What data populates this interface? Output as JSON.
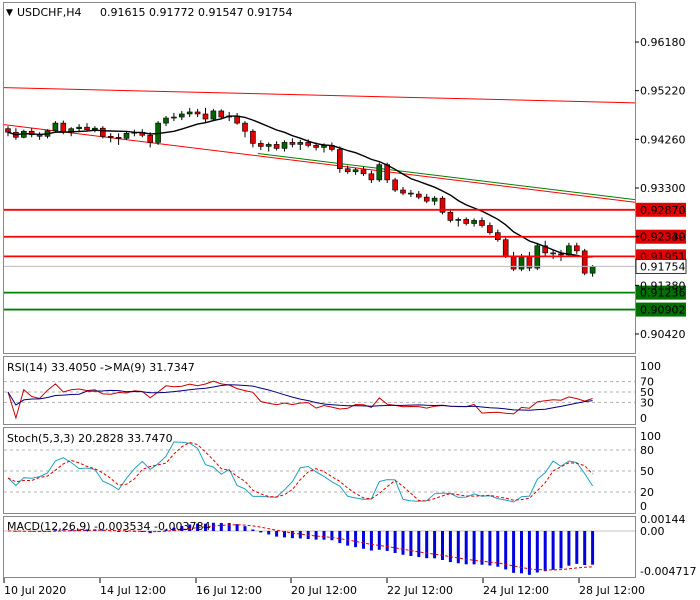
{
  "header": {
    "symbol": "USDCHF,H4",
    "ohlc": "0.91615 0.91772 0.91547 0.91754"
  },
  "colors": {
    "bull": "#006400",
    "bear": "#e00000",
    "ma": "#000000",
    "red_line": "#ff0000",
    "green_line": "#008000",
    "resistance_tag": "#e00000",
    "support_tag": "#007000",
    "grid": "#b0b0b0",
    "rsi_line": "#cc0000",
    "rsi_ma": "#000080",
    "stoch_main": "#20a0c0",
    "stoch_signal": "#e00000",
    "macd_hist": "#0000e0",
    "macd_signal": "#e00000"
  },
  "main_axis": {
    "ticks": [
      "0.96180",
      "0.95220",
      "0.94260",
      "0.93300",
      "0.92340",
      "0.91380",
      "0.90420"
    ]
  },
  "levels": {
    "resistance": [
      "0.92870",
      "0.92339",
      "0.91951"
    ],
    "support": [
      "0.91236",
      "0.90902"
    ],
    "current": "0.91754"
  },
  "rsi": {
    "label": "RSI(14) 33.4050 ->MA(9) 31.7347",
    "ticks": [
      "100",
      "70",
      "50",
      "30",
      "0"
    ]
  },
  "stoch": {
    "label": "Stoch(5,3,3) 20.2828 33.7470",
    "ticks": [
      "100",
      "80",
      "50",
      "20",
      "0"
    ]
  },
  "macd": {
    "label": "MACD(12,26,9) -0.003534 -0.003784",
    "ticks": [
      "0.00144",
      "0.00",
      "-0.004717"
    ]
  },
  "time_axis": [
    "10 Jul 2020",
    "14 Jul 12:00",
    "16 Jul 12:00",
    "20 Jul 12:00",
    "22 Jul 12:00",
    "24 Jul 12:00",
    "28 Jul 12:00"
  ],
  "candles": [
    [
      0.9447,
      0.9452,
      0.9432,
      0.944
    ],
    [
      0.944,
      0.9448,
      0.9425,
      0.943
    ],
    [
      0.943,
      0.9445,
      0.9428,
      0.9442
    ],
    [
      0.9442,
      0.9448,
      0.943,
      0.9435
    ],
    [
      0.9435,
      0.944,
      0.9425,
      0.9432
    ],
    [
      0.9432,
      0.9446,
      0.9428,
      0.9443
    ],
    [
      0.9443,
      0.9462,
      0.944,
      0.9458
    ],
    [
      0.9458,
      0.9463,
      0.9436,
      0.944
    ],
    [
      0.944,
      0.945,
      0.9432,
      0.9447
    ],
    [
      0.9447,
      0.9456,
      0.944,
      0.945
    ],
    [
      0.945,
      0.9458,
      0.9442,
      0.9445
    ],
    [
      0.9445,
      0.9452,
      0.944,
      0.9448
    ],
    [
      0.9448,
      0.9452,
      0.9428,
      0.9432
    ],
    [
      0.9432,
      0.9438,
      0.942,
      0.943
    ],
    [
      0.943,
      0.9438,
      0.9415,
      0.9428
    ],
    [
      0.9428,
      0.9442,
      0.9425,
      0.9438
    ],
    [
      0.9438,
      0.9445,
      0.9432,
      0.944
    ],
    [
      0.944,
      0.9446,
      0.943,
      0.9434
    ],
    [
      0.9434,
      0.944,
      0.941,
      0.942
    ],
    [
      0.942,
      0.9462,
      0.9415,
      0.9458
    ],
    [
      0.9458,
      0.9472,
      0.9452,
      0.9468
    ],
    [
      0.9468,
      0.9478,
      0.9462,
      0.947
    ],
    [
      0.947,
      0.9482,
      0.9464,
      0.9476
    ],
    [
      0.9476,
      0.9488,
      0.947,
      0.948
    ],
    [
      0.948,
      0.9486,
      0.947,
      0.9476
    ],
    [
      0.9476,
      0.9488,
      0.946,
      0.9466
    ],
    [
      0.9466,
      0.9486,
      0.9462,
      0.9482
    ],
    [
      0.9482,
      0.9485,
      0.9466,
      0.947
    ],
    [
      0.947,
      0.948,
      0.9462,
      0.9472
    ],
    [
      0.9472,
      0.9478,
      0.9455,
      0.9458
    ],
    [
      0.9458,
      0.9462,
      0.943,
      0.9442
    ],
    [
      0.9442,
      0.9446,
      0.941,
      0.9418
    ],
    [
      0.9418,
      0.9424,
      0.9405,
      0.9412
    ],
    [
      0.9412,
      0.942,
      0.9402,
      0.9416
    ],
    [
      0.9416,
      0.9422,
      0.9404,
      0.9408
    ],
    [
      0.9408,
      0.9424,
      0.9402,
      0.942
    ],
    [
      0.942,
      0.9428,
      0.941,
      0.9416
    ],
    [
      0.9416,
      0.9425,
      0.9405,
      0.942
    ],
    [
      0.942,
      0.9426,
      0.941,
      0.9414
    ],
    [
      0.9414,
      0.942,
      0.9404,
      0.941
    ],
    [
      0.941,
      0.9418,
      0.94,
      0.9414
    ],
    [
      0.9414,
      0.942,
      0.9402,
      0.9406
    ],
    [
      0.9406,
      0.9412,
      0.936,
      0.9368
    ],
    [
      0.9368,
      0.9374,
      0.9358,
      0.9362
    ],
    [
      0.9362,
      0.937,
      0.9356,
      0.9366
    ],
    [
      0.9366,
      0.9372,
      0.9354,
      0.9358
    ],
    [
      0.9358,
      0.9364,
      0.934,
      0.9346
    ],
    [
      0.9346,
      0.938,
      0.9342,
      0.9376
    ],
    [
      0.9376,
      0.938,
      0.934,
      0.9346
    ],
    [
      0.9346,
      0.935,
      0.9322,
      0.9326
    ],
    [
      0.9326,
      0.9332,
      0.9316,
      0.932
    ],
    [
      0.932,
      0.9326,
      0.9312,
      0.9318
    ],
    [
      0.9318,
      0.9324,
      0.9308,
      0.9312
    ],
    [
      0.9312,
      0.9318,
      0.93,
      0.9304
    ],
    [
      0.9304,
      0.9314,
      0.9296,
      0.931
    ],
    [
      0.931,
      0.9314,
      0.9278,
      0.9282
    ],
    [
      0.9282,
      0.9286,
      0.9262,
      0.9266
    ],
    [
      0.9266,
      0.9272,
      0.9254,
      0.9268
    ],
    [
      0.9268,
      0.9272,
      0.9256,
      0.926
    ],
    [
      0.926,
      0.927,
      0.9254,
      0.9266
    ],
    [
      0.9266,
      0.9272,
      0.9252,
      0.9256
    ],
    [
      0.9256,
      0.9262,
      0.9238,
      0.9242
    ],
    [
      0.9242,
      0.9248,
      0.9224,
      0.9228
    ],
    [
      0.9228,
      0.9232,
      0.9192,
      0.9196
    ],
    [
      0.9196,
      0.9204,
      0.9166,
      0.917
    ],
    [
      0.917,
      0.92,
      0.9166,
      0.9196
    ],
    [
      0.9196,
      0.9204,
      0.9166,
      0.9172
    ],
    [
      0.9172,
      0.9222,
      0.9168,
      0.9216
    ],
    [
      0.9216,
      0.9226,
      0.9196,
      0.9202
    ],
    [
      0.9202,
      0.9208,
      0.919,
      0.92
    ],
    [
      0.92,
      0.9208,
      0.9186,
      0.9198
    ],
    [
      0.9198,
      0.9222,
      0.9194,
      0.9216
    ],
    [
      0.9216,
      0.9222,
      0.92,
      0.9206
    ],
    [
      0.9206,
      0.921,
      0.9158,
      0.9162
    ],
    [
      0.9162,
      0.9178,
      0.9155,
      0.9175
    ]
  ]
}
